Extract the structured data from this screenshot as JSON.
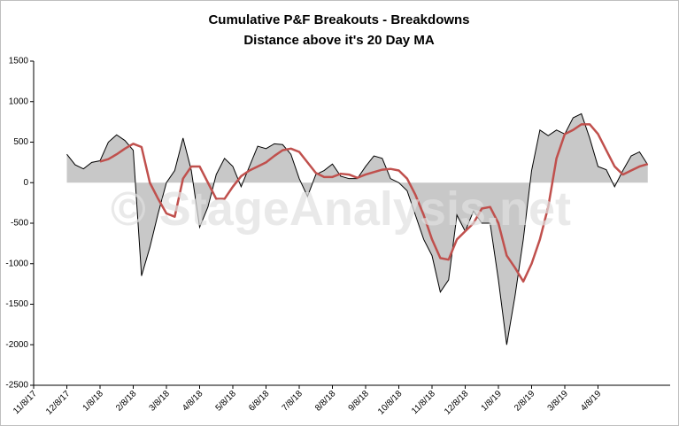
{
  "chart_data": {
    "type": "area_line",
    "title": "Cumulative P&F Breakouts - Breakdowns",
    "subtitle": "Distance above it's 20 Day MA",
    "watermark": "© StageAnalysis.net",
    "categories": [
      "11/8/17",
      null,
      null,
      null,
      "12/8/17",
      null,
      null,
      null,
      "1/8/18",
      null,
      null,
      null,
      "2/8/18",
      null,
      null,
      null,
      "3/8/18",
      null,
      null,
      null,
      "4/8/18",
      null,
      null,
      null,
      "5/8/18",
      null,
      null,
      null,
      "6/8/18",
      null,
      null,
      null,
      "7/8/18",
      null,
      null,
      null,
      "8/8/18",
      null,
      null,
      null,
      "9/8/18",
      null,
      null,
      null,
      "10/8/18",
      null,
      null,
      null,
      "11/8/18",
      null,
      null,
      null,
      "12/8/18",
      null,
      null,
      null,
      "1/8/19",
      null,
      null,
      null,
      "2/8/19",
      null,
      null,
      null,
      "3/8/19",
      null,
      null,
      null,
      "4/8/19",
      null,
      null,
      null,
      null,
      null,
      null,
      null,
      null
    ],
    "series": [
      {
        "kind": "area",
        "color": "#c8c8c8",
        "line_color": "#000000",
        "values": [
          null,
          null,
          null,
          null,
          350,
          220,
          170,
          250,
          270,
          500,
          590,
          520,
          400,
          -1150,
          -800,
          -380,
          0,
          150,
          550,
          150,
          -550,
          -300,
          100,
          300,
          200,
          -50,
          200,
          450,
          420,
          480,
          470,
          350,
          50,
          -170,
          100,
          150,
          230,
          80,
          50,
          50,
          200,
          330,
          300,
          50,
          0,
          -100,
          -400,
          -700,
          -900,
          -1350,
          -1200,
          -400,
          -600,
          -350,
          -500,
          -500,
          -1200,
          -2000,
          -1400,
          -700,
          150,
          650,
          580,
          650,
          600,
          800,
          850,
          550,
          200,
          160,
          -50,
          150,
          330,
          380,
          220,
          null,
          null
        ]
      },
      {
        "kind": "line",
        "color": "#c0504d",
        "values": [
          null,
          null,
          null,
          null,
          null,
          null,
          null,
          null,
          260,
          290,
          350,
          420,
          480,
          440,
          0,
          -200,
          -380,
          -420,
          50,
          200,
          200,
          0,
          -200,
          -200,
          -50,
          80,
          150,
          200,
          250,
          330,
          400,
          420,
          380,
          250,
          120,
          70,
          70,
          110,
          100,
          60,
          100,
          130,
          160,
          170,
          150,
          50,
          -150,
          -400,
          -700,
          -930,
          -950,
          -700,
          -600,
          -500,
          -320,
          -300,
          -500,
          -900,
          -1050,
          -1220,
          -1000,
          -700,
          -300,
          300,
          600,
          650,
          720,
          720,
          600,
          400,
          200,
          100,
          150,
          200,
          230,
          null,
          null
        ]
      }
    ],
    "ylim": [
      -2500,
      1500
    ],
    "yticks": [
      -2500,
      -2000,
      -1500,
      -1000,
      -500,
      0,
      500,
      1000,
      1500
    ]
  }
}
